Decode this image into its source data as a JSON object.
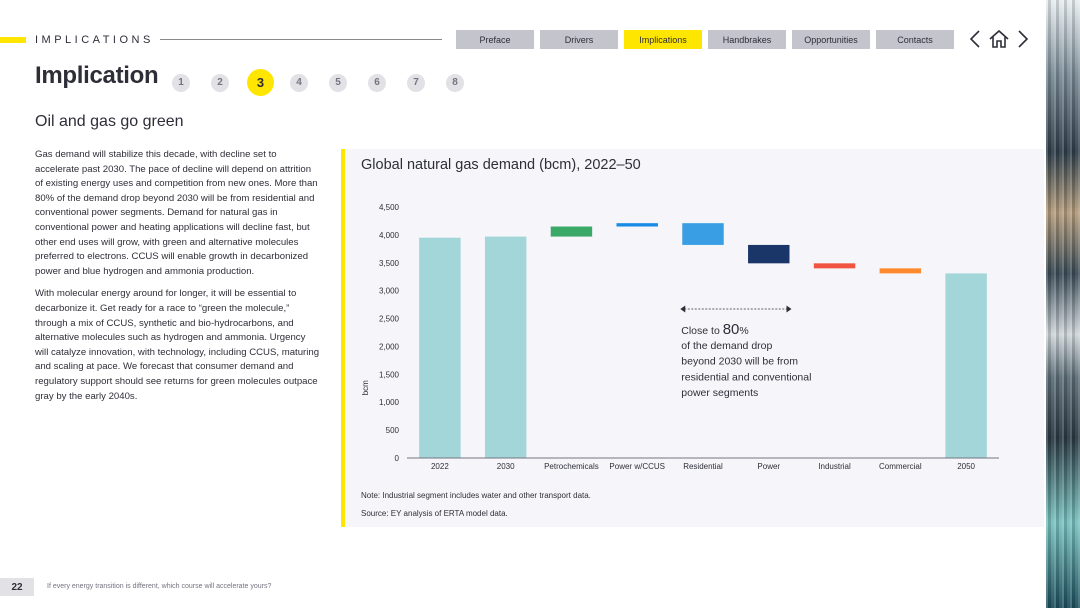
{
  "header": {
    "section_label": "IMPLICATIONS",
    "nav_tabs": [
      {
        "label": "Preface",
        "active": false
      },
      {
        "label": "Drivers",
        "active": false
      },
      {
        "label": "Implications",
        "active": true
      },
      {
        "label": "Handbrakes",
        "active": false
      },
      {
        "label": "Opportunities",
        "active": false
      },
      {
        "label": "Contacts",
        "active": false
      }
    ],
    "icons": [
      "chevron-left-icon",
      "home-icon",
      "chevron-right-icon"
    ]
  },
  "title": "Implication",
  "steps": [
    "1",
    "2",
    "3",
    "4",
    "5",
    "6",
    "7",
    "8"
  ],
  "active_step": "3",
  "subtitle": "Oil and gas go green",
  "body": {
    "paragraph1": "Gas demand will stabilize this decade, with decline set to accelerate past 2030. The pace of decline will depend on attrition of existing energy uses and competition from new ones. More than 80% of the demand drop beyond 2030 will be from residential and conventional power segments. Demand for natural gas in conventional power and heating applications will decline fast, but other end uses will grow, with green and alternative molecules preferred to electrons. CCUS will enable growth in decarbonized power and blue hydrogen and ammonia production.",
    "paragraph2": "With molecular energy around for longer, it will be essential to decarbonize it. Get ready for a race to “green the molecule,” through a mix of CCUS, synthetic and bio-hydrocarbons, and alternative molecules such as hydrogen and ammonia. Urgency will catalyze innovation, with technology, including CCUS, maturing and scaling at pace. We forecast that consumer demand and regulatory support should see returns for green molecules outpace gray by the early 2040s."
  },
  "chart_panel": {
    "note": "Note: Industrial segment includes water and other transport data.",
    "source": "Source: EY analysis of ERTA model data."
  },
  "chart_data": {
    "type": "bar",
    "subtype": "waterfall",
    "title": "Global natural gas demand (bcm), 2022–50",
    "ylabel": "bcm",
    "xlabel": "",
    "ylim": [
      0,
      4500
    ],
    "yticks": [
      0,
      500,
      1000,
      1500,
      2000,
      2500,
      3000,
      3500,
      4000,
      4500
    ],
    "ytick_labels": [
      "0",
      "500",
      "1,000",
      "1,500",
      "2,000",
      "2,500",
      "3,000",
      "3,500",
      "4,000",
      "4,500"
    ],
    "grid": false,
    "categories": [
      "2022",
      "2030",
      "Petrochemicals",
      "Power w/CCUS",
      "Residential",
      "Power",
      "Industrial",
      "Commercial",
      "2050"
    ],
    "bars": [
      {
        "category": "2022",
        "kind": "total",
        "start": 0,
        "end": 3950,
        "color": "#a3d6d9"
      },
      {
        "category": "2030",
        "kind": "total",
        "start": 0,
        "end": 3970,
        "color": "#a3d6d9"
      },
      {
        "category": "Petrochemicals",
        "kind": "increase",
        "start": 3970,
        "end": 4150,
        "color": "#3aa867"
      },
      {
        "category": "Power w/CCUS",
        "kind": "increase",
        "start": 4150,
        "end": 4210,
        "color": "#188ce5"
      },
      {
        "category": "Residential",
        "kind": "decrease",
        "start": 4210,
        "end": 3820,
        "color": "#3a9ee5"
      },
      {
        "category": "Power",
        "kind": "decrease",
        "start": 3820,
        "end": 3490,
        "color": "#1a3668"
      },
      {
        "category": "Industrial",
        "kind": "decrease",
        "start": 3490,
        "end": 3400,
        "color": "#f0533f"
      },
      {
        "category": "Commercial",
        "kind": "decrease",
        "start": 3400,
        "end": 3310,
        "color": "#ff8a2e"
      },
      {
        "category": "2050",
        "kind": "total",
        "start": 0,
        "end": 3310,
        "color": "#a3d6d9"
      }
    ],
    "annotation": {
      "prefix": "Close to ",
      "highlight": "80",
      "suffix": "%",
      "line2": "of the demand drop",
      "line3": "beyond 2030 will be from",
      "line4": "residential and conventional",
      "line5": "power segments"
    }
  },
  "footer": {
    "page_number": "22",
    "tagline": "If every energy transition is different, which course will accelerate yours?"
  }
}
